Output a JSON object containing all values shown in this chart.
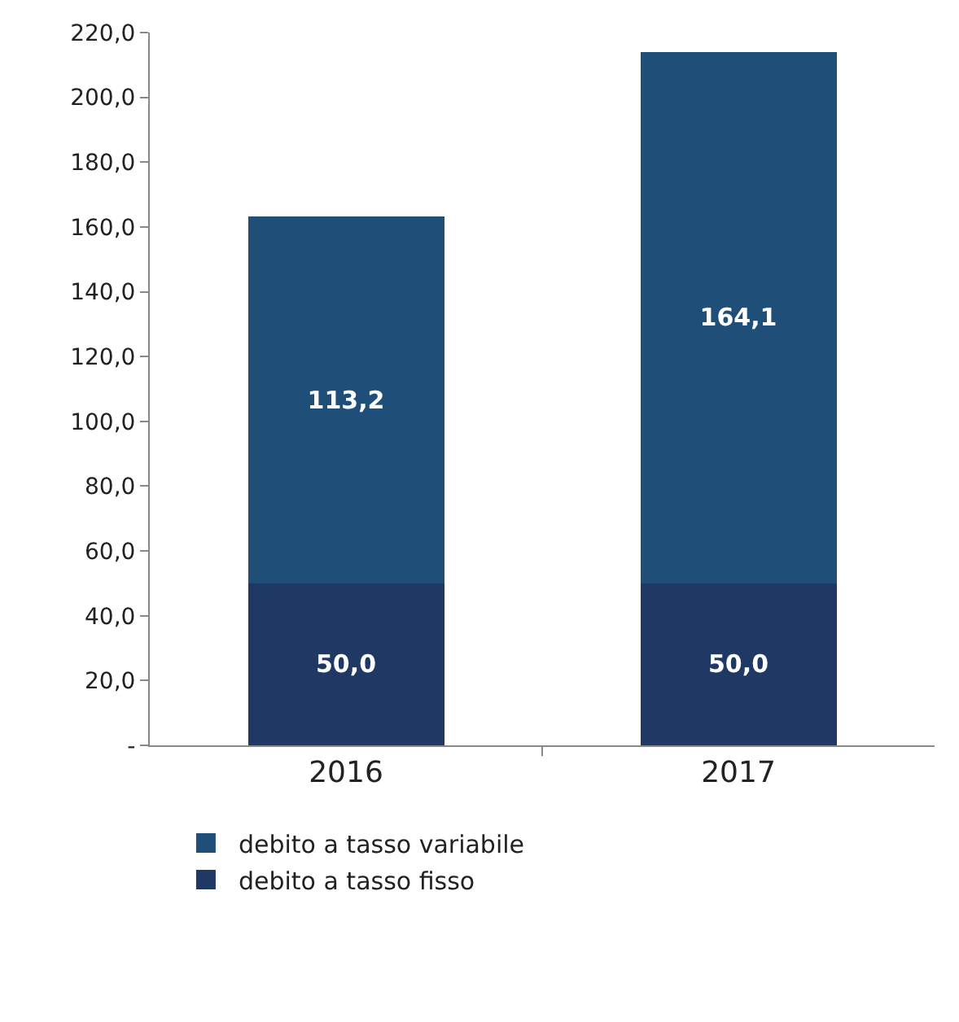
{
  "chart_data": {
    "type": "bar",
    "stacked": true,
    "categories": [
      "2016",
      "2017"
    ],
    "series": [
      {
        "name": "debito a tasso fisso",
        "color": "#1f3864",
        "values": [
          50.0,
          50.0
        ],
        "value_labels": [
          "50,0",
          "50,0"
        ]
      },
      {
        "name": "debito a tasso variabile",
        "color": "#1f4e79",
        "values": [
          113.2,
          164.1
        ],
        "value_labels": [
          "113,2",
          "164,1"
        ]
      }
    ],
    "ylim": [
      0,
      220
    ],
    "yticks": [
      {
        "value": 0,
        "label": "-"
      },
      {
        "value": 20,
        "label": "20,0"
      },
      {
        "value": 40,
        "label": "40,0"
      },
      {
        "value": 60,
        "label": "60,0"
      },
      {
        "value": 80,
        "label": "80,0"
      },
      {
        "value": 100,
        "label": "100,0"
      },
      {
        "value": 120,
        "label": "120,0"
      },
      {
        "value": 140,
        "label": "140,0"
      },
      {
        "value": 160,
        "label": "160,0"
      },
      {
        "value": 180,
        "label": "180,0"
      },
      {
        "value": 200,
        "label": "200,0"
      },
      {
        "value": 220,
        "label": "220,0"
      }
    ],
    "grid": false,
    "legend": "bottom left"
  }
}
